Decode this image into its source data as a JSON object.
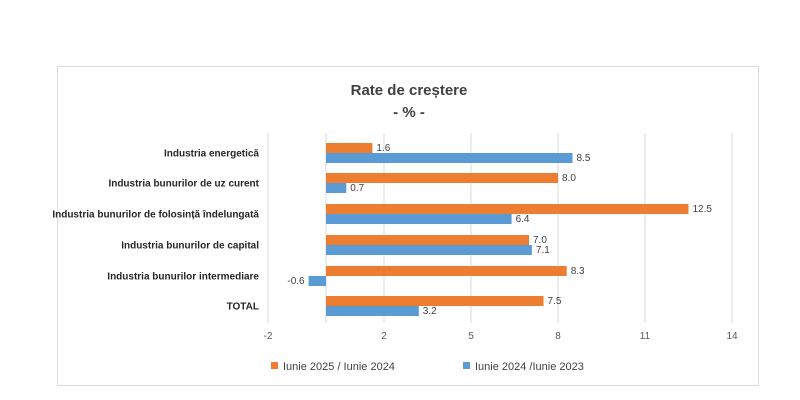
{
  "chart_data": {
    "type": "bar",
    "orientation": "horizontal",
    "title": "Rate de creștere",
    "subtitle": "- % -",
    "categories": [
      "Industria energetică",
      "Industria bunurilor de uz curent",
      "Industria bunurilor de folosință îndelungată",
      "Industria bunurilor de capital",
      "Industria bunurilor intermediare",
      "TOTAL"
    ],
    "series": [
      {
        "name": "Iunie 2025 / Iunie 2024",
        "color": "#ED7D31",
        "values": [
          1.6,
          8.0,
          12.5,
          7.0,
          8.3,
          7.5
        ],
        "labels": [
          "1.6",
          "8.0",
          "12.5",
          "7.0",
          "8.3",
          "7.5"
        ]
      },
      {
        "name": "Iunie 2024 /Iunie 2023",
        "color": "#5B9BD5",
        "values": [
          8.5,
          0.7,
          6.4,
          7.1,
          -0.6,
          3.2
        ],
        "labels": [
          "8.5",
          "0.7",
          "6.4",
          "7.1",
          "-0.6",
          "3.2"
        ]
      }
    ],
    "xlim": [
      -2,
      14
    ],
    "xticks": [
      -2,
      2,
      5,
      8,
      11,
      14
    ],
    "grid": "vertical",
    "legend_position": "bottom"
  }
}
